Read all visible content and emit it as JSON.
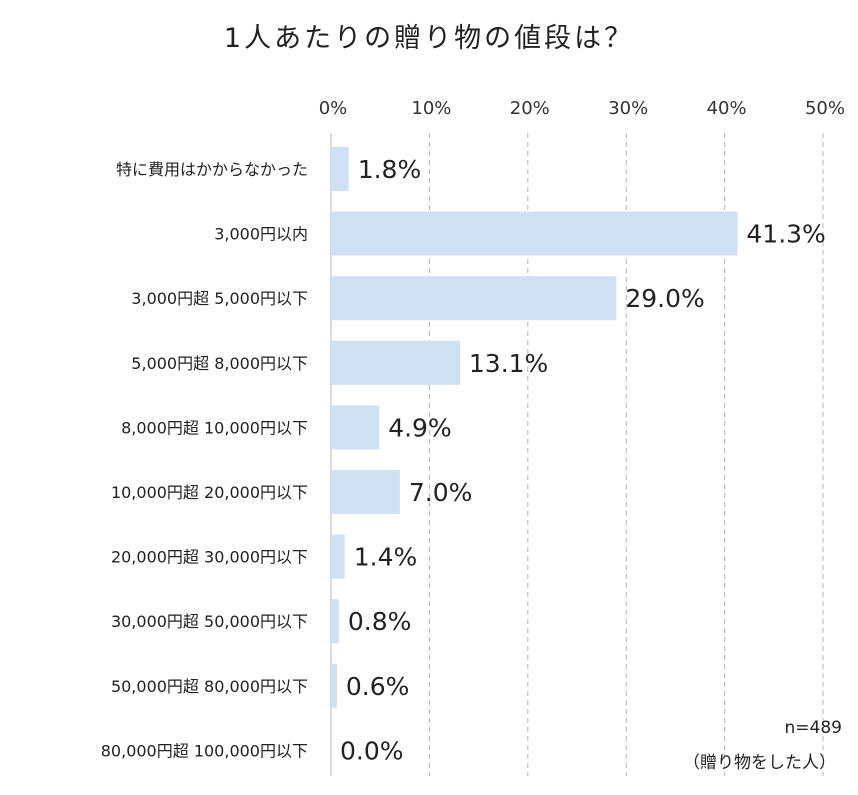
{
  "chart_data": {
    "type": "bar",
    "orientation": "horizontal",
    "title": "1人あたりの贈り物の値段は？",
    "categories": [
      "特に費用はかからなかった",
      "3,000円以内",
      "3,000円超 5,000円以下",
      "5,000円超 8,000円以下",
      "8,000円超 10,000円以下",
      "10,000円超 20,000円以下",
      "20,000円超 30,000円以下",
      "30,000円超 50,000円以下",
      "50,000円超 80,000円以下",
      "80,000円超 100,000円以下"
    ],
    "values": [
      1.8,
      41.3,
      29.0,
      13.1,
      4.9,
      7.0,
      1.4,
      0.8,
      0.6,
      0.0
    ],
    "value_labels": [
      "1.8%",
      "41.3%",
      "29.0%",
      "13.1%",
      "4.9%",
      "7.0%",
      "1.4%",
      "0.8%",
      "0.6%",
      "0.0%"
    ],
    "xlim": [
      0,
      50
    ],
    "xticks": [
      "0%",
      "10%",
      "20%",
      "30%",
      "40%",
      "50%"
    ],
    "xtick_values": [
      0,
      10,
      20,
      30,
      40,
      50
    ],
    "grid": true,
    "bar_color": "#cfe0f2",
    "grid_color": "#b5b5b5"
  },
  "note": {
    "sample_size": "n=489",
    "subtitle": "（贈り物をした人）"
  }
}
